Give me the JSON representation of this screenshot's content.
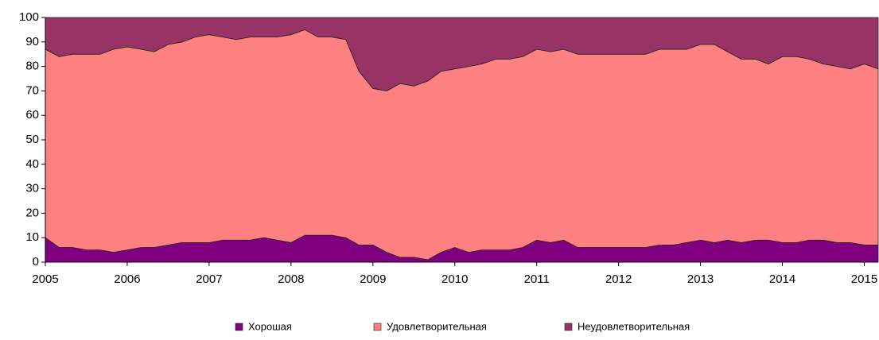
{
  "chart_data": {
    "type": "stacked_area",
    "x": [
      2005,
      2005.17,
      2005.33,
      2005.5,
      2005.67,
      2005.83,
      2006,
      2006.17,
      2006.33,
      2006.5,
      2006.67,
      2006.83,
      2007,
      2007.17,
      2007.33,
      2007.5,
      2007.67,
      2007.83,
      2008,
      2008.17,
      2008.33,
      2008.5,
      2008.67,
      2008.83,
      2009,
      2009.17,
      2009.33,
      2009.5,
      2009.67,
      2009.83,
      2010,
      2010.17,
      2010.33,
      2010.5,
      2010.67,
      2010.83,
      2011,
      2011.17,
      2011.33,
      2011.5,
      2011.67,
      2011.83,
      2012,
      2012.17,
      2012.33,
      2012.5,
      2012.67,
      2012.83,
      2013,
      2013.17,
      2013.33,
      2013.5,
      2013.67,
      2013.83,
      2014,
      2014.17,
      2014.33,
      2014.5,
      2014.67,
      2014.83,
      2015,
      2015.17
    ],
    "series": [
      {
        "name": "Хорошая",
        "color": "#800080",
        "values": [
          10,
          6,
          6,
          5,
          5,
          4,
          5,
          6,
          6,
          7,
          8,
          8,
          8,
          9,
          9,
          9,
          10,
          9,
          8,
          11,
          11,
          11,
          10,
          7,
          7,
          4,
          2,
          2,
          1,
          4,
          6,
          4,
          5,
          5,
          5,
          6,
          9,
          8,
          9,
          6,
          6,
          6,
          6,
          6,
          6,
          7,
          7,
          8,
          9,
          8,
          9,
          8,
          9,
          9,
          8,
          8,
          9,
          9,
          8,
          8,
          7,
          7
        ]
      },
      {
        "name": "Удовлетворительная",
        "color": "#ff8080",
        "values": [
          77,
          78,
          79,
          80,
          80,
          83,
          83,
          81,
          80,
          82,
          82,
          84,
          85,
          83,
          82,
          83,
          82,
          83,
          85,
          84,
          81,
          81,
          81,
          71,
          64,
          66,
          71,
          70,
          73,
          74,
          73,
          76,
          76,
          78,
          78,
          78,
          78,
          78,
          78,
          79,
          79,
          79,
          79,
          79,
          79,
          80,
          80,
          79,
          80,
          81,
          77,
          75,
          74,
          72,
          76,
          76,
          74,
          72,
          72,
          71,
          74,
          72
        ]
      },
      {
        "name": "Неудовлетворительная",
        "color": "#993366",
        "values": [
          13,
          16,
          15,
          15,
          15,
          13,
          12,
          13,
          14,
          11,
          10,
          8,
          7,
          8,
          9,
          8,
          8,
          8,
          7,
          5,
          8,
          8,
          9,
          22,
          29,
          30,
          27,
          28,
          26,
          22,
          21,
          20,
          19,
          17,
          17,
          16,
          13,
          14,
          13,
          15,
          15,
          15,
          15,
          15,
          15,
          13,
          13,
          13,
          11,
          11,
          14,
          17,
          17,
          19,
          16,
          16,
          17,
          19,
          20,
          21,
          19,
          21
        ]
      }
    ],
    "xlim": [
      2005,
      2015.17
    ],
    "xticks": [
      2005,
      2006,
      2007,
      2008,
      2009,
      2010,
      2011,
      2012,
      2013,
      2014,
      2015
    ],
    "ylim": [
      0,
      100
    ],
    "yticks": [
      0,
      10,
      20,
      30,
      40,
      50,
      60,
      70,
      80,
      90,
      100
    ],
    "legend": "bottom"
  }
}
